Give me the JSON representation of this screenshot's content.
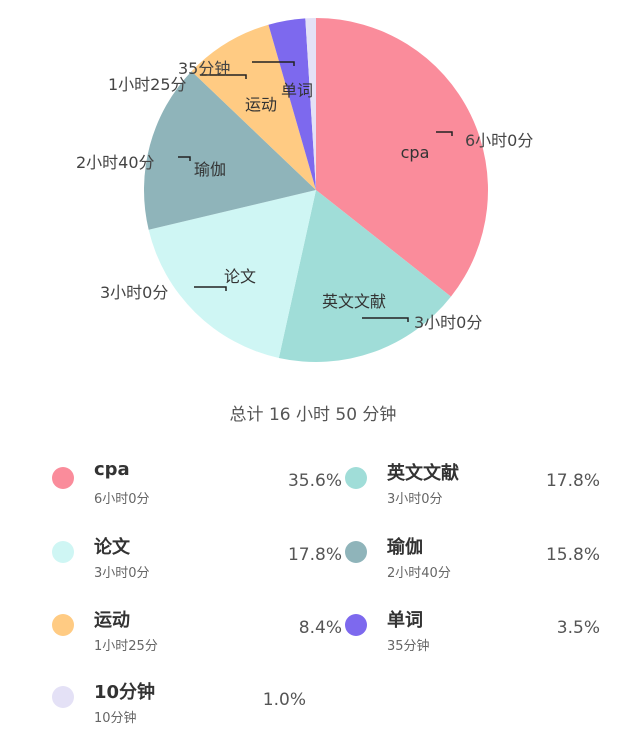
{
  "chart_data": {
    "type": "pie",
    "categories": [
      "cpa",
      "英文文献",
      "论文",
      "瑜伽",
      "运动",
      "单词",
      "10分钟"
    ],
    "values": [
      360,
      180,
      180,
      160,
      85,
      35,
      10
    ],
    "value_labels": [
      "6小时0分",
      "3小时0分",
      "3小时0分",
      "2小时40分",
      "1小时25分",
      "35分钟",
      ""
    ],
    "colors": [
      "#FA8C9B",
      "#A0DDD8",
      "#CFF6F4",
      "#8FB4BA",
      "#FFCB83",
      "#7D69EE",
      "#E4E1F6"
    ],
    "title": ""
  },
  "total": "总计 16 小时 50 分钟",
  "legend": [
    {
      "name": "cpa",
      "sub": "6小时0分",
      "pct": "35.6%",
      "color": "#FA8C9B"
    },
    {
      "name": "英文文献",
      "sub": "3小时0分",
      "pct": "17.8%",
      "color": "#A0DDD8"
    },
    {
      "name": "论文",
      "sub": "3小时0分",
      "pct": "17.8%",
      "color": "#CFF6F4"
    },
    {
      "name": "瑜伽",
      "sub": "2小时40分",
      "pct": "15.8%",
      "color": "#8FB4BA"
    },
    {
      "name": "运动",
      "sub": "1小时25分",
      "pct": "8.4%",
      "color": "#FFCB83"
    },
    {
      "name": "单词",
      "sub": "35分钟",
      "pct": "3.5%",
      "color": "#7D69EE"
    },
    {
      "name": "10分钟",
      "sub": "10分钟",
      "pct": "1.0%",
      "color": "#E4E1F6"
    }
  ]
}
